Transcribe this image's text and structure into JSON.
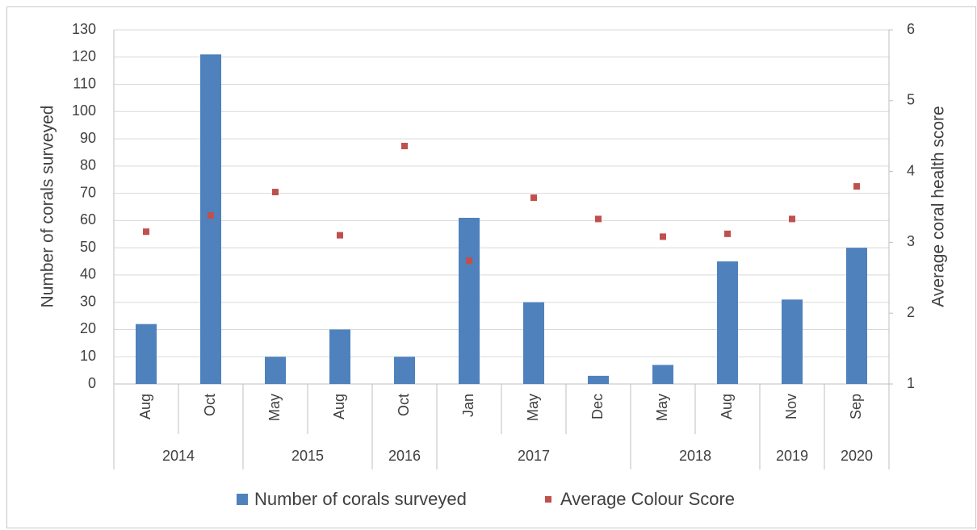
{
  "chart_data": {
    "type": "bar_scatter",
    "categories": [
      "Aug",
      "Oct",
      "May",
      "Aug",
      "Oct",
      "Jan",
      "May",
      "Dec",
      "May",
      "Aug",
      "Nov",
      "Sep"
    ],
    "category_years": [
      "2014",
      "2014",
      "2015",
      "2015",
      "2016",
      "2017",
      "2017",
      "2017",
      "2018",
      "2018",
      "2019",
      "2020"
    ],
    "y_label": "Number of corals surveyed",
    "y2_label": "Average coral health score",
    "ylim": [
      0,
      130
    ],
    "yticks": [
      0,
      10,
      20,
      30,
      40,
      50,
      60,
      70,
      80,
      90,
      100,
      110,
      120,
      130
    ],
    "y2lim": [
      1,
      6
    ],
    "y2ticks": [
      1,
      2,
      3,
      4,
      5,
      6
    ],
    "grid": true,
    "legend": "bottom",
    "series": [
      {
        "name": "Number of corals surveyed",
        "type": "bar",
        "color": "#4f81bd",
        "values": [
          22,
          121,
          10,
          20,
          10,
          61,
          30,
          3,
          7,
          45,
          31,
          50
        ]
      },
      {
        "name": "Average Colour Score",
        "type": "scatter",
        "axis": "y2",
        "color": "#c0504d",
        "values": [
          3.15,
          3.38,
          3.71,
          3.1,
          4.36,
          2.74,
          3.63,
          3.33,
          3.08,
          3.12,
          3.33,
          3.79
        ]
      }
    ]
  }
}
